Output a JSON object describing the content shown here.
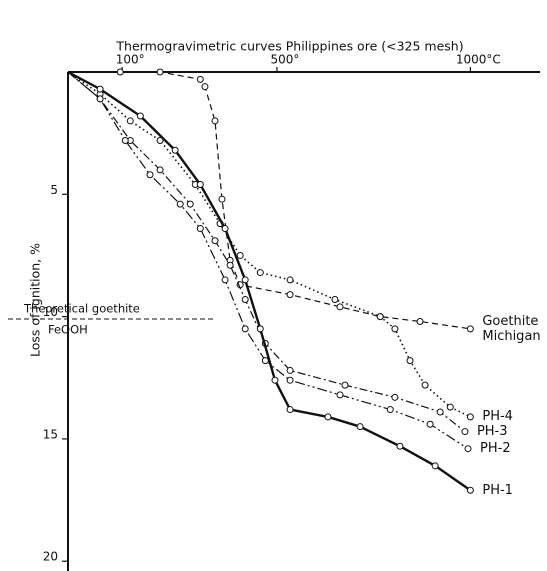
{
  "chart_data": {
    "type": "line",
    "title": "Thermogravimetric curves Philippines ore (<325 mesh)",
    "ylabel": "Loss of ignition,   %",
    "xlim": [
      -40,
      1180
    ],
    "ylim": [
      0,
      20.4
    ],
    "y_inverted": true,
    "x_axis_position": "top",
    "xticks": [
      {
        "value": 100,
        "label": "100°"
      },
      {
        "value": 500,
        "label": "500°"
      },
      {
        "value": 1000,
        "label": "1000°C"
      }
    ],
    "yticks": [
      5,
      10,
      15,
      20
    ],
    "marker": "circle",
    "reference_line": {
      "value": 10.1,
      "xmax": 340,
      "label": "Theoretical goethite",
      "sublabel": "FeOOH"
    },
    "series": [
      {
        "name": "Goethite Michigan",
        "color": "#111111",
        "linestyle": "dashed",
        "linewidth": 1.2,
        "x": [
          -40,
          95,
          198,
          302,
          314,
          340,
          358,
          379,
          405,
          534,
          663,
          767,
          870,
          1000
        ],
        "values": [
          0,
          0,
          0,
          0.3,
          0.6,
          2.0,
          5.2,
          7.7,
          8.7,
          9.1,
          9.6,
          10.0,
          10.2,
          10.5
        ]
      },
      {
        "name": "PH-4",
        "color": "#111111",
        "linestyle": "dotted",
        "linewidth": 1.6,
        "x": [
          -40,
          43,
          121,
          198,
          289,
          353,
          405,
          457,
          534,
          650,
          767,
          805,
          844,
          883,
          948,
          1000
        ],
        "values": [
          0,
          0.9,
          2.0,
          2.8,
          4.6,
          6.2,
          7.5,
          8.2,
          8.5,
          9.3,
          10.0,
          10.5,
          11.8,
          12.8,
          13.7,
          14.1
        ]
      },
      {
        "name": "PH-3",
        "color": "#111111",
        "linestyle": "dashdot",
        "linewidth": 1.2,
        "x": [
          -40,
          43,
          121,
          198,
          276,
          340,
          379,
          418,
          470,
          534,
          676,
          805,
          922,
          986
        ],
        "values": [
          0,
          1.1,
          2.8,
          4.0,
          5.4,
          6.9,
          7.9,
          9.3,
          11.1,
          12.2,
          12.8,
          13.3,
          13.9,
          14.7
        ]
      },
      {
        "name": "PH-2",
        "color": "#111111",
        "linestyle": "longdash",
        "linewidth": 1.2,
        "x": [
          -40,
          43,
          108,
          172,
          250,
          302,
          366,
          418,
          470,
          534,
          663,
          793,
          896,
          994
        ],
        "values": [
          0,
          1.1,
          2.8,
          4.2,
          5.4,
          6.4,
          8.5,
          10.5,
          11.8,
          12.6,
          13.2,
          13.8,
          14.4,
          15.4
        ]
      },
      {
        "name": "PH-1",
        "color": "#111111",
        "linestyle": "solid",
        "linewidth": 2.4,
        "x": [
          -40,
          43,
          147,
          237,
          302,
          366,
          418,
          457,
          495,
          534,
          632,
          715,
          818,
          909,
          1000
        ],
        "values": [
          0,
          0.7,
          1.8,
          3.2,
          4.6,
          6.4,
          8.5,
          10.5,
          12.6,
          13.8,
          14.1,
          14.5,
          15.3,
          16.1,
          17.1
        ]
      }
    ]
  }
}
